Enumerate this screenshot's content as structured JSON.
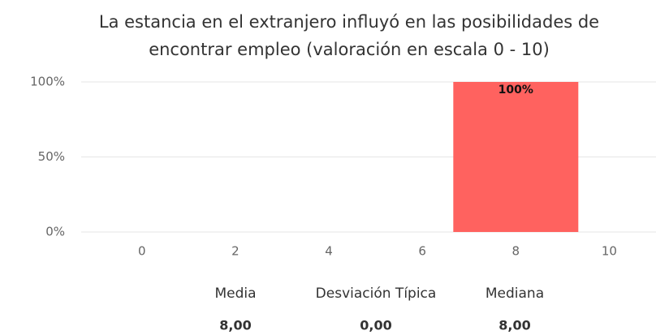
{
  "chart_data": {
    "type": "bar",
    "title": [
      "La estancia en el extranjero influyó en las posibilidades de",
      "encontrar empleo (valoración en escala 0 - 10)"
    ],
    "x": [
      8
    ],
    "values": [
      100
    ],
    "value_labels": [
      "100%"
    ],
    "color": "#ff625f",
    "xlim": [
      -1.3,
      11
    ],
    "xticks": [
      0,
      2,
      4,
      6,
      8,
      10
    ],
    "ylim": [
      0,
      100
    ],
    "yticks": [
      {
        "value": 0,
        "label": "0%"
      },
      {
        "value": 50,
        "label": "50%"
      },
      {
        "value": 100,
        "label": "100%"
      }
    ],
    "grid": true,
    "stats": [
      {
        "name": "Media",
        "value": "8,00"
      },
      {
        "name": "Desviación Típica",
        "value": "0,00"
      },
      {
        "name": "Mediana",
        "value": "8,00"
      }
    ]
  }
}
